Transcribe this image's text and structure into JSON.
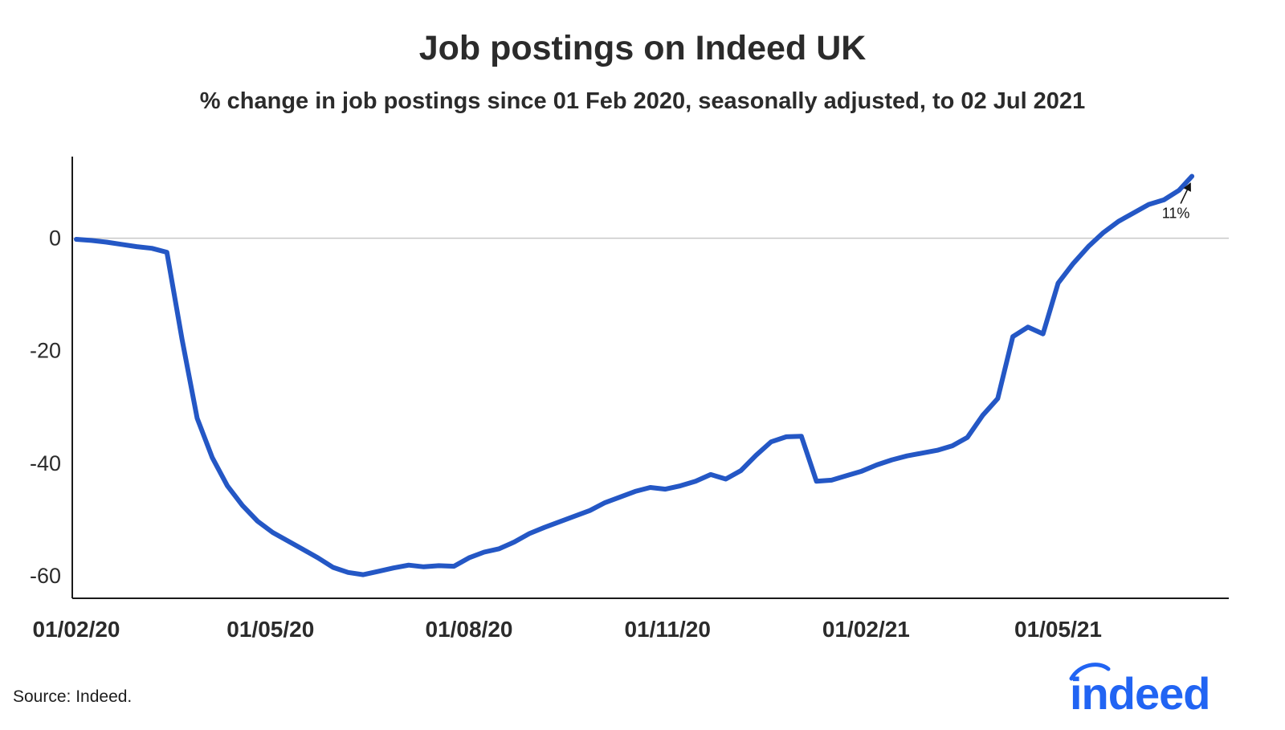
{
  "footer": {
    "source": "Source: Indeed.",
    "logo": "indeed"
  },
  "colors": {
    "line": "#2457C5",
    "logo": "#2164F3",
    "zero_line": "#C9C9C9",
    "axis": "#1A1A1A",
    "text": "#2B2B2B",
    "annotation": "#111111"
  },
  "chart_data": {
    "type": "line",
    "title": "Job postings on Indeed UK",
    "subtitle": "% change in job postings since 01 Feb 2020, seasonally adjusted, to 02 Jul 2021",
    "xlabel": "",
    "ylabel": "",
    "legend": "none",
    "grid": "horizontal zero-line only",
    "ylim": [
      -64,
      14.5
    ],
    "x_domain": [
      "2020-02-01",
      "2021-07-15"
    ],
    "x_ticks": [
      {
        "date": "2020-02-01",
        "label": "01/02/20"
      },
      {
        "date": "2020-05-01",
        "label": "01/05/20"
      },
      {
        "date": "2020-08-01",
        "label": "01/08/20"
      },
      {
        "date": "2020-11-01",
        "label": "01/11/20"
      },
      {
        "date": "2021-02-01",
        "label": "01/02/21"
      },
      {
        "date": "2021-05-01",
        "label": "01/05/21"
      }
    ],
    "y_ticks": [
      {
        "value": 0,
        "label": "0"
      },
      {
        "value": -20,
        "label": "-20"
      },
      {
        "value": -40,
        "label": "-40"
      },
      {
        "value": -60,
        "label": "-60"
      }
    ],
    "annotation": {
      "text": "11%",
      "date": "2021-07-02",
      "value": 11
    },
    "series": [
      {
        "name": "% change in job postings since 01 Feb 2020 (seasonally adjusted)",
        "dates": [
          "2020-02-01",
          "2020-02-08",
          "2020-02-15",
          "2020-02-22",
          "2020-02-29",
          "2020-03-07",
          "2020-03-14",
          "2020-03-21",
          "2020-03-28",
          "2020-04-04",
          "2020-04-11",
          "2020-04-18",
          "2020-04-25",
          "2020-05-02",
          "2020-05-09",
          "2020-05-16",
          "2020-05-23",
          "2020-05-30",
          "2020-06-06",
          "2020-06-13",
          "2020-06-20",
          "2020-06-27",
          "2020-07-04",
          "2020-07-11",
          "2020-07-18",
          "2020-07-25",
          "2020-08-01",
          "2020-08-08",
          "2020-08-15",
          "2020-08-22",
          "2020-08-29",
          "2020-09-05",
          "2020-09-12",
          "2020-09-19",
          "2020-09-26",
          "2020-10-03",
          "2020-10-10",
          "2020-10-17",
          "2020-10-24",
          "2020-10-31",
          "2020-11-07",
          "2020-11-14",
          "2020-11-21",
          "2020-11-28",
          "2020-12-05",
          "2020-12-12",
          "2020-12-19",
          "2020-12-26",
          "2021-01-02",
          "2021-01-09",
          "2021-01-16",
          "2021-01-23",
          "2021-01-30",
          "2021-02-06",
          "2021-02-13",
          "2021-02-20",
          "2021-02-27",
          "2021-03-06",
          "2021-03-13",
          "2021-03-20",
          "2021-03-27",
          "2021-04-03",
          "2021-04-10",
          "2021-04-17",
          "2021-04-24",
          "2021-05-01",
          "2021-05-08",
          "2021-05-15",
          "2021-05-22",
          "2021-05-29",
          "2021-06-05",
          "2021-06-12",
          "2021-06-19",
          "2021-06-26",
          "2021-07-02"
        ],
        "values": [
          -0.2,
          -0.4,
          -0.7,
          -1.1,
          -1.5,
          -1.8,
          -2.5,
          -18,
          -32,
          -39,
          -44,
          -47.5,
          -50.3,
          -52.3,
          -53.8,
          -55.3,
          -56.8,
          -58.5,
          -59.4,
          -59.8,
          -59.2,
          -58.6,
          -58.1,
          -58.4,
          -58.2,
          -58.3,
          -56.8,
          -55.8,
          -55.2,
          -54,
          -52.5,
          -51.4,
          -50.4,
          -49.4,
          -48.4,
          -47,
          -46,
          -45,
          -44.3,
          -44.6,
          -44,
          -43.2,
          -42,
          -42.8,
          -41.3,
          -38.6,
          -36.2,
          -35.3,
          -35.2,
          -43.2,
          -43,
          -42.2,
          -41.4,
          -40.3,
          -39.4,
          -38.7,
          -38.2,
          -37.7,
          -36.9,
          -35.4,
          -31.5,
          -28.5,
          -17.5,
          -15.8,
          -17,
          -8,
          -4.5,
          -1.5,
          1,
          3,
          4.5,
          6,
          6.8,
          8.5,
          11
        ]
      }
    ]
  }
}
